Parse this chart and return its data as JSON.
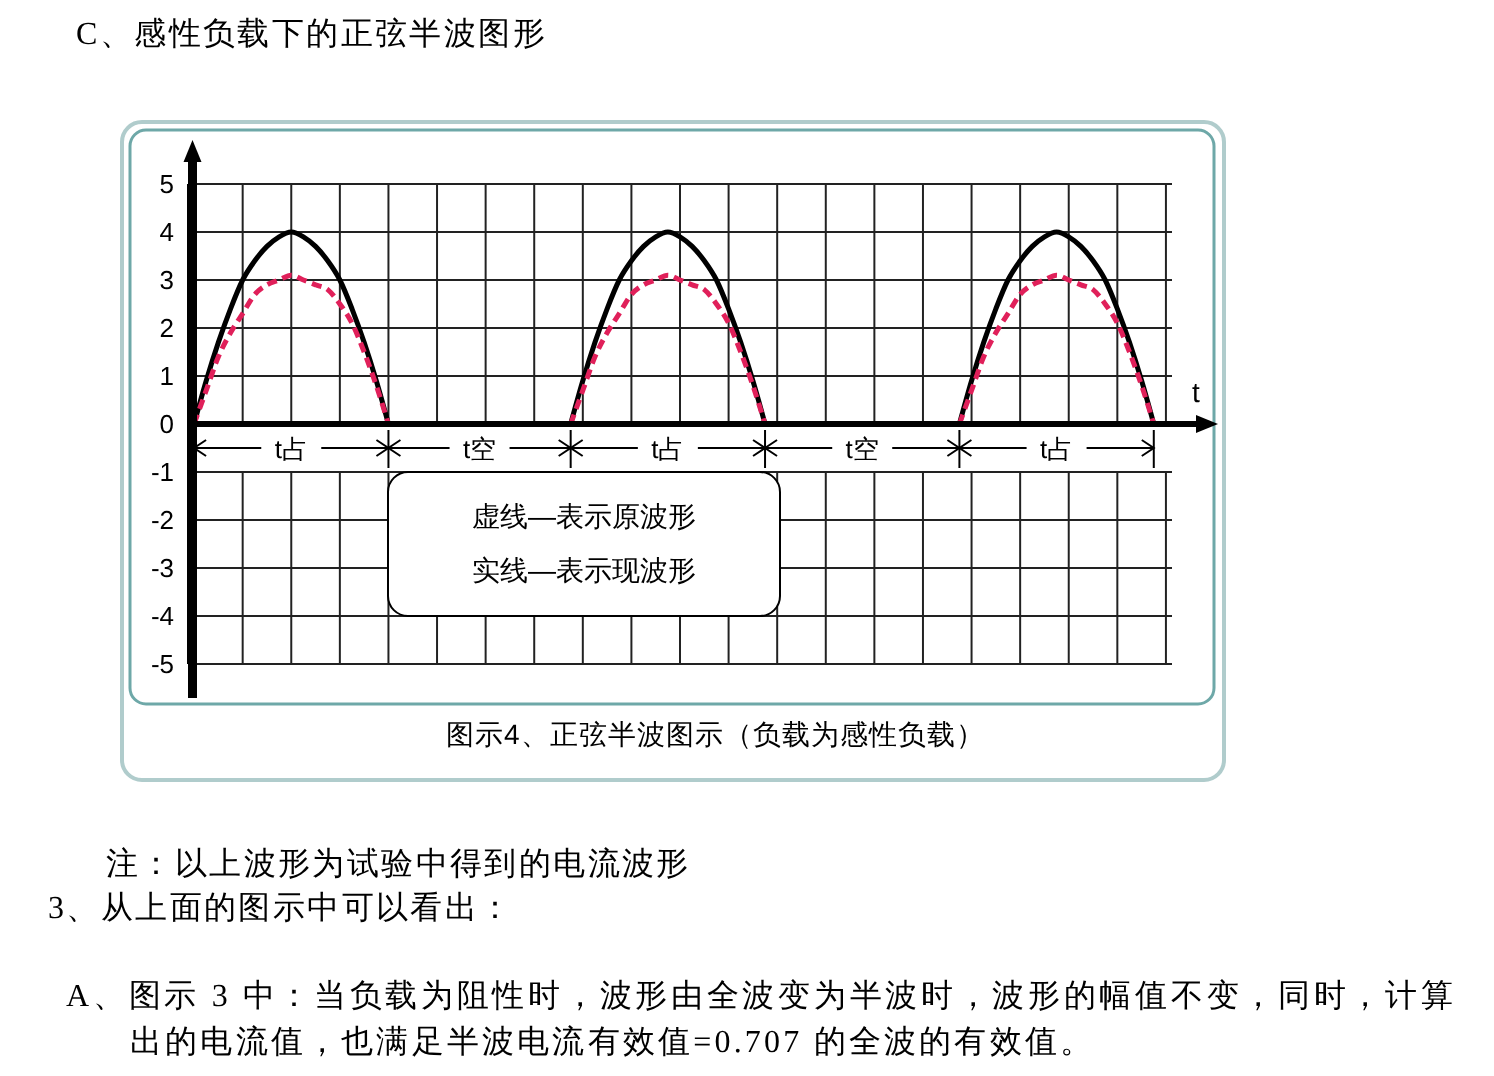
{
  "chart_data": {
    "type": "line",
    "title": "C、感性负载下的正弦半波图形",
    "xlabel": "t",
    "categories": [
      null,
      null,
      null,
      null,
      null,
      null,
      null,
      null,
      null,
      null,
      null,
      null,
      null,
      null,
      null,
      null,
      null,
      null,
      null,
      null,
      null,
      null,
      null,
      null,
      null,
      null,
      null,
      null,
      null,
      null,
      null,
      null,
      null,
      null,
      null,
      null,
      null,
      null,
      null,
      null,
      null,
      null,
      null,
      null,
      null,
      null,
      null,
      null,
      null,
      null,
      null,
      null,
      null,
      null,
      null,
      null,
      null,
      null,
      null,
      null,
      null,
      null,
      null,
      null,
      null,
      null,
      null,
      null,
      null,
      null,
      null,
      null,
      null,
      null,
      null,
      null,
      null,
      null,
      null,
      null,
      null
    ],
    "series": [
      {
        "color": "#000000",
        "line_style": "solid",
        "values": [
          0,
          0.9,
          1.7,
          2.4,
          3,
          3.4,
          3.7,
          3.9,
          4,
          3.9,
          3.7,
          3.4,
          3,
          2.4,
          1.7,
          0.9,
          0,
          null,
          null,
          null,
          null,
          null,
          null,
          null,
          null,
          null,
          null,
          null,
          null,
          null,
          null,
          0,
          0.9,
          1.7,
          2.4,
          3,
          3.4,
          3.7,
          3.9,
          4,
          3.9,
          3.7,
          3.4,
          3,
          2.4,
          1.7,
          0.9,
          0,
          null,
          null,
          null,
          null,
          null,
          null,
          null,
          null,
          null,
          null,
          null,
          null,
          null,
          null,
          null,
          0,
          0.9,
          1.7,
          2.4,
          3,
          3.4,
          3.7,
          3.9,
          4,
          3.9,
          3.7,
          3.4,
          3,
          2.4,
          1.7,
          0.9,
          0,
          null
        ]
      },
      {
        "color": "#e0205a",
        "line_style": "dashed",
        "values": [
          0,
          0.7,
          1.4,
          1.9,
          2.3,
          2.7,
          2.9,
          3,
          3.1,
          3,
          2.9,
          2.8,
          2.5,
          2.1,
          1.5,
          0.8,
          0,
          null,
          null,
          null,
          null,
          null,
          null,
          null,
          null,
          null,
          null,
          null,
          null,
          null,
          null,
          0,
          0.7,
          1.4,
          1.9,
          2.3,
          2.7,
          2.9,
          3,
          3.1,
          3,
          2.9,
          2.8,
          2.5,
          2.1,
          1.5,
          0.8,
          0,
          null,
          null,
          null,
          null,
          null,
          null,
          null,
          null,
          null,
          null,
          null,
          null,
          null,
          null,
          null,
          0,
          0.7,
          1.4,
          1.9,
          2.3,
          2.7,
          2.9,
          3,
          3.1,
          3,
          2.9,
          2.8,
          2.5,
          2.1,
          1.5,
          0.8,
          0,
          null
        ]
      }
    ],
    "ylim": [
      -5,
      5
    ],
    "yticks": [
      -5,
      -4,
      -3,
      -2,
      -1,
      0,
      1,
      2,
      3,
      4,
      5
    ],
    "grid": true,
    "tick_labels": "y",
    "annotations": [
      "t占",
      "t空",
      "t占",
      "t空",
      "t占",
      "虚线—表示原波形",
      "实线—表示现波形",
      "图示4、正弦半波图示（负载为感性负载）",
      "注：以上波形为试验中得到的电流波形",
      "3、从上面的图示中可以看出：",
      "A、图示 3 中：当负载为阻性时，波形由全波变为半波时，波形的幅值不变，同时，计算出的电流值，也满足半波电流有效值=0.707 的全波的有效值。"
    ]
  }
}
